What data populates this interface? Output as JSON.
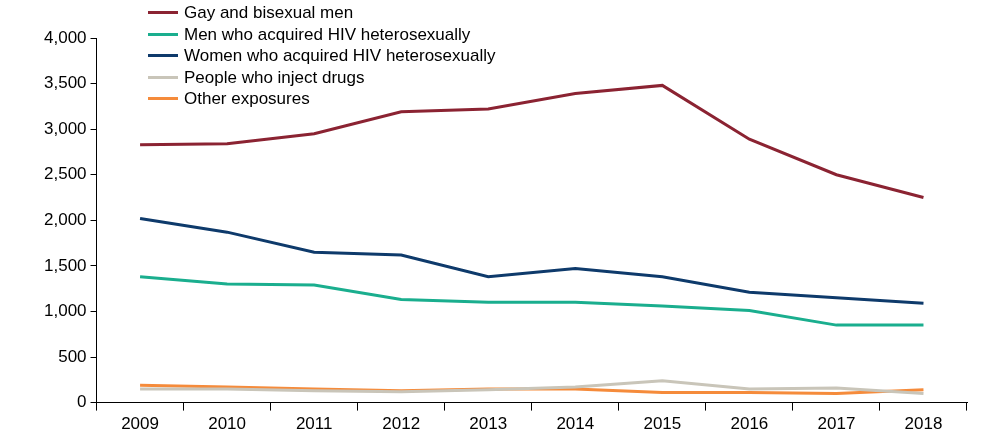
{
  "chart_data": {
    "type": "line",
    "categories": [
      "2009",
      "2010",
      "2011",
      "2012",
      "2013",
      "2014",
      "2015",
      "2016",
      "2017",
      "2018"
    ],
    "series": [
      {
        "name": "Gay and bisexual men",
        "color": "#8b2332",
        "values": [
          2830,
          2840,
          2950,
          3190,
          3220,
          3390,
          3480,
          2890,
          2500,
          2250
        ]
      },
      {
        "name": "Men who acquired HIV heterosexually",
        "color": "#1aae8e",
        "values": [
          1380,
          1300,
          1290,
          1130,
          1100,
          1100,
          1060,
          1010,
          850,
          850
        ]
      },
      {
        "name": "Women who acquired HIV heterosexually",
        "color": "#0e3a6b",
        "values": [
          2020,
          1870,
          1650,
          1620,
          1380,
          1470,
          1380,
          1210,
          1150,
          1090
        ]
      },
      {
        "name": "People who inject drugs",
        "color": "#c9c5b9",
        "values": [
          150,
          150,
          130,
          120,
          140,
          170,
          240,
          150,
          160,
          100
        ]
      },
      {
        "name": "Other exposures",
        "color": "#f58b3b",
        "values": [
          190,
          170,
          150,
          130,
          150,
          150,
          110,
          110,
          100,
          140
        ]
      }
    ],
    "ylim": [
      0,
      4000
    ],
    "yticks": [
      0,
      500,
      {
        "value": 1000,
        "label": "1,000"
      },
      {
        "value": 1500,
        "label": "1,500"
      },
      {
        "value": 2000,
        "label": "2,000"
      },
      {
        "value": 2500,
        "label": "2,500"
      },
      {
        "value": 3000,
        "label": "3,000"
      },
      {
        "value": 3500,
        "label": "3,500"
      },
      {
        "value": 4000,
        "label": "4,000"
      }
    ],
    "grid": false,
    "legend": "upper left"
  }
}
